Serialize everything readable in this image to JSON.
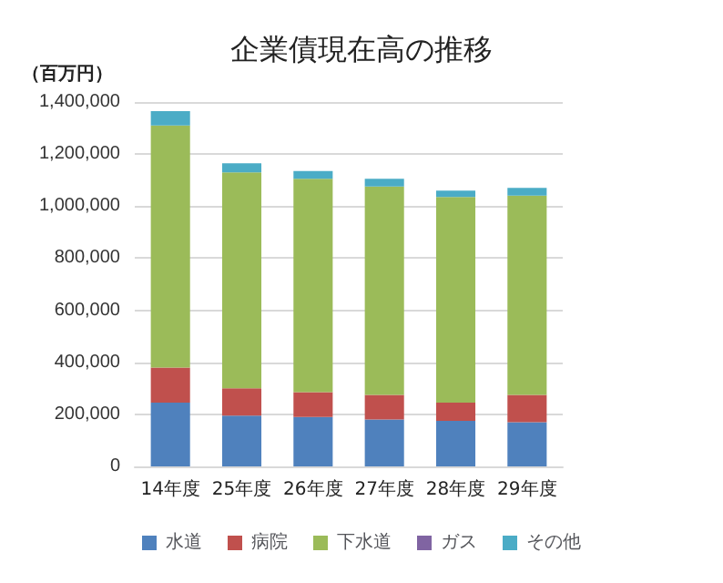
{
  "chart_data": {
    "type": "bar",
    "title": "企業債現在高の推移",
    "ylabel": "（百万円）",
    "categories": [
      "14年度",
      "25年度",
      "26年度",
      "27年度",
      "28年度",
      "29年度"
    ],
    "stacked": true,
    "series": [
      {
        "name": "水道",
        "color": "#4f81bd",
        "values": [
          245000,
          195000,
          190000,
          180000,
          175000,
          170000
        ]
      },
      {
        "name": "病院",
        "color": "#c0504d",
        "values": [
          135000,
          105000,
          95000,
          95000,
          70000,
          105000
        ]
      },
      {
        "name": "下水道",
        "color": "#9bbb59",
        "values": [
          930000,
          830000,
          820000,
          800000,
          790000,
          765000
        ]
      },
      {
        "name": "ガス",
        "color": "#8064a2",
        "values": [
          0,
          0,
          0,
          0,
          0,
          0
        ]
      },
      {
        "name": "その他",
        "color": "#4bacc6",
        "values": [
          55000,
          35000,
          30000,
          30000,
          25000,
          30000
        ]
      }
    ],
    "ylim": [
      0,
      1400000
    ],
    "yticks": [
      0,
      {
        "value": 200000,
        "label": "200,000"
      },
      {
        "value": 400000,
        "label": "400,000"
      },
      {
        "value": 600000,
        "label": "600,000"
      },
      {
        "value": 800000,
        "label": "800,000"
      },
      {
        "value": 1000000,
        "label": "1,000,000"
      },
      {
        "value": 1200000,
        "label": "1,200,000"
      },
      {
        "value": 1400000,
        "label": "1,400,000"
      }
    ],
    "grid": "y",
    "legend": "bottom"
  }
}
